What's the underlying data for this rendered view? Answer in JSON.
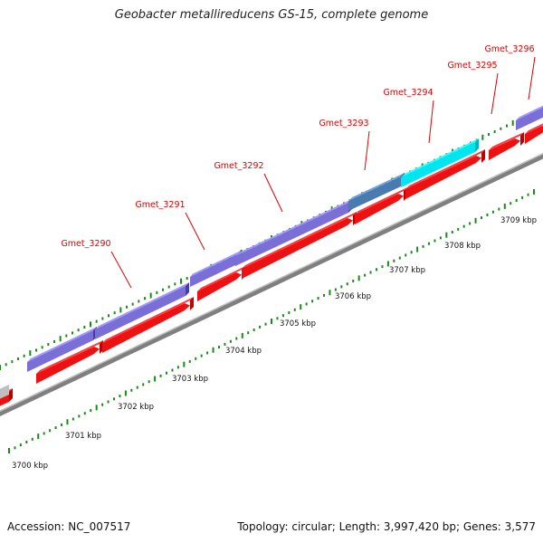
{
  "title": "Geobacter metallireducens GS-15, complete genome",
  "footer": {
    "accession": "Accession: NC_007517",
    "stats": "Topology: circular; Length: 3,997,420 bp; Genes: 3,577"
  },
  "colors": {
    "gene_purple": "#7a6fd6",
    "gene_steel": "#4a7bb0",
    "gene_cyan": "#00e5f0",
    "cds_red": "#ee1111",
    "backbone": "#7f7f7f",
    "tick_green": "#1a8a1a",
    "label_red": "#dd0000"
  },
  "scale_labels": [
    "3700 kbp",
    "3701 kbp",
    "3702 kbp",
    "3703 kbp",
    "3704 kbp",
    "3705 kbp",
    "3706 kbp",
    "3707 kbp",
    "3708 kbp",
    "3709 kbp"
  ],
  "genes": [
    {
      "name": "Gmet_3290",
      "color": "purple"
    },
    {
      "name": "Gmet_3291",
      "color": "purple"
    },
    {
      "name": "Gmet_3292",
      "color": "purple"
    },
    {
      "name": "Gmet_3293",
      "color": "steel"
    },
    {
      "name": "Gmet_3294",
      "color": "cyan"
    },
    {
      "name": "Gmet_3295",
      "color": "none"
    },
    {
      "name": "Gmet_3296",
      "color": "purple"
    }
  ]
}
